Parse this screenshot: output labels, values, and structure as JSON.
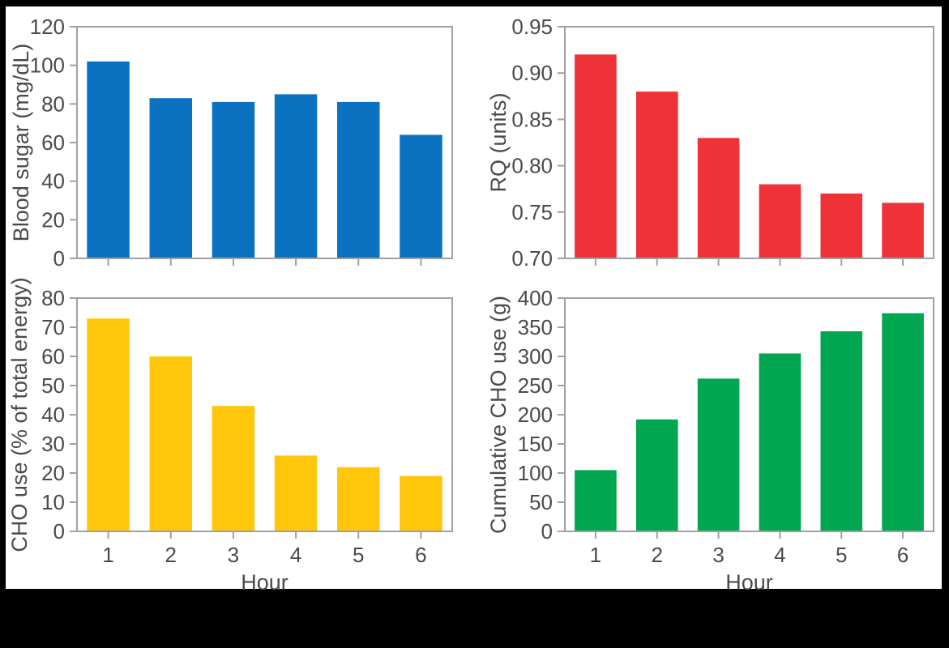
{
  "figure": {
    "background_color": "#000000",
    "panel_color": "#ffffff",
    "frame_color": "#a0a1a4",
    "tick_color": "#a0a1a4",
    "text_color": "#4a4b4f",
    "xlabel": "Hour",
    "x_categories": [
      "1",
      "2",
      "3",
      "4",
      "5",
      "6"
    ]
  },
  "chart_data": [
    {
      "type": "bar",
      "position": "top-left",
      "title": "",
      "ylabel": "Blood sugar (mg/dL)",
      "xlabel": "",
      "categories": [
        "1",
        "2",
        "3",
        "4",
        "5",
        "6"
      ],
      "values": [
        102,
        83,
        81,
        85,
        81,
        64
      ],
      "ylim": [
        0,
        120
      ],
      "ytick_values": [
        0,
        20,
        40,
        60,
        80,
        100,
        120
      ],
      "ytick_labels": [
        "0",
        "20",
        "40",
        "60",
        "80",
        "100",
        "120"
      ],
      "bar_color": "#0b72c2",
      "grid": false,
      "legend": "none",
      "show_x_tick_labels": false
    },
    {
      "type": "bar",
      "position": "top-right",
      "title": "",
      "ylabel": "RQ (units)",
      "xlabel": "",
      "categories": [
        "1",
        "2",
        "3",
        "4",
        "5",
        "6"
      ],
      "values": [
        0.92,
        0.88,
        0.83,
        0.78,
        0.77,
        0.76
      ],
      "ylim": [
        0.7,
        0.95
      ],
      "ytick_values": [
        0.7,
        0.75,
        0.8,
        0.85,
        0.9,
        0.95
      ],
      "ytick_labels": [
        "0.70",
        "0.75",
        "0.80",
        "0.85",
        "0.90",
        "0.95"
      ],
      "bar_color": "#ee3237",
      "grid": false,
      "legend": "none",
      "show_x_tick_labels": false
    },
    {
      "type": "bar",
      "position": "bottom-left",
      "title": "",
      "ylabel": "CHO use (% of total energy)",
      "xlabel": "Hour",
      "categories": [
        "1",
        "2",
        "3",
        "4",
        "5",
        "6"
      ],
      "values": [
        73,
        60,
        43,
        26,
        22,
        19
      ],
      "ylim": [
        0,
        80
      ],
      "ytick_values": [
        0,
        10,
        20,
        30,
        40,
        50,
        60,
        70,
        80
      ],
      "ytick_labels": [
        "0",
        "10",
        "20",
        "30",
        "40",
        "50",
        "60",
        "70",
        "80"
      ],
      "bar_color": "#ffc60b",
      "grid": false,
      "legend": "none",
      "show_x_tick_labels": true
    },
    {
      "type": "bar",
      "position": "bottom-right",
      "title": "",
      "ylabel": "Cumulative CHO use (g)",
      "xlabel": "Hour",
      "categories": [
        "1",
        "2",
        "3",
        "4",
        "5",
        "6"
      ],
      "values": [
        105,
        192,
        262,
        305,
        343,
        374
      ],
      "ylim": [
        0,
        400
      ],
      "ytick_values": [
        0,
        50,
        100,
        150,
        200,
        250,
        300,
        350,
        400
      ],
      "ytick_labels": [
        "0",
        "50",
        "100",
        "150",
        "200",
        "250",
        "300",
        "350",
        "400"
      ],
      "bar_color": "#00a650",
      "grid": false,
      "legend": "none",
      "show_x_tick_labels": true
    }
  ]
}
